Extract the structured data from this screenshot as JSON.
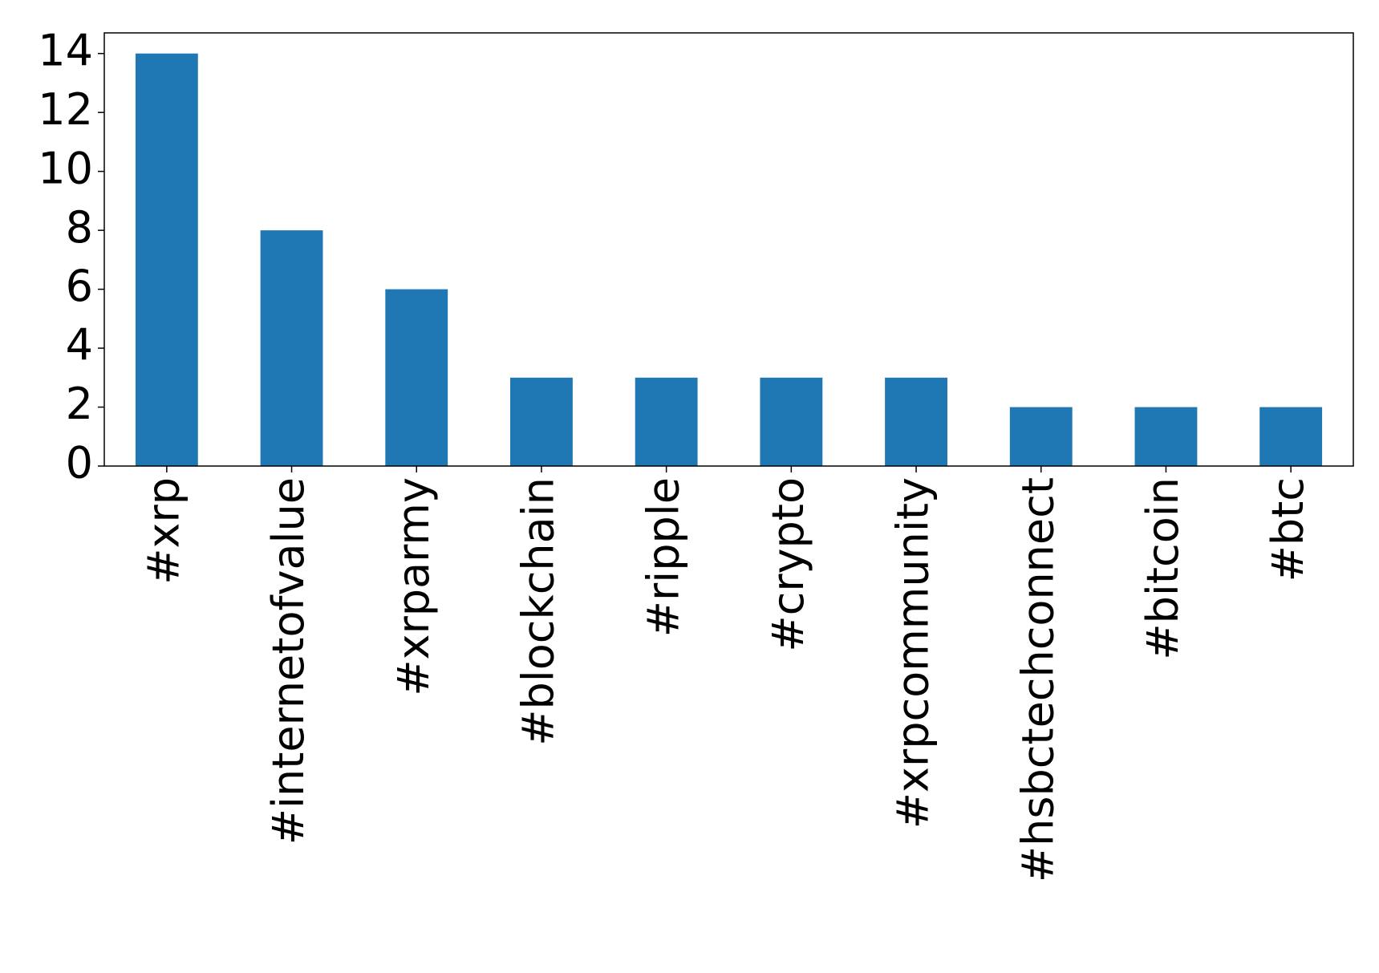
{
  "chart_data": {
    "type": "bar",
    "categories": [
      "#xrp",
      "#internetofvalue",
      "#xrparmy",
      "#blockchain",
      "#ripple",
      "#crypto",
      "#xrpcommunity",
      "#hsbctechconnect",
      "#bitcoin",
      "#btc"
    ],
    "values": [
      14,
      8,
      6,
      3,
      3,
      3,
      3,
      2,
      2,
      2
    ],
    "color": "#1f77b4",
    "ylim": [
      0,
      14.7
    ],
    "yticks": [
      0,
      2,
      4,
      6,
      8,
      10,
      12,
      14
    ],
    "grid": false
  }
}
